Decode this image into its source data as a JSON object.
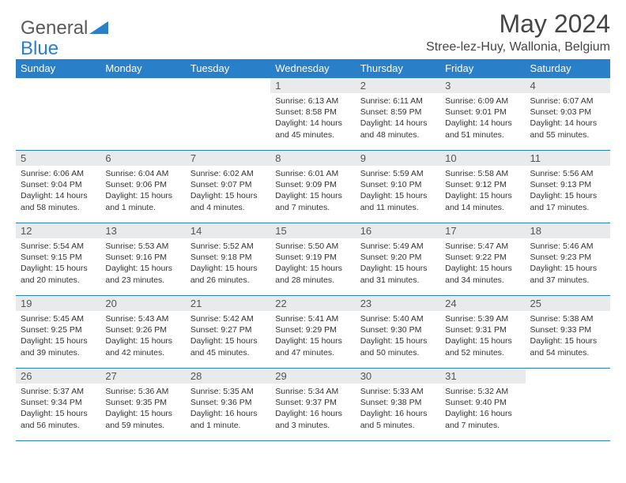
{
  "brand": {
    "part1": "General",
    "part2": "Blue"
  },
  "title": "May 2024",
  "location": "Stree-lez-Huy, Wallonia, Belgium",
  "colors": {
    "header_bg": "#2a7fc9",
    "header_text": "#ffffff",
    "daynum_bg": "#e9eaeb",
    "border": "#2a7fc9",
    "text": "#333333",
    "logo_gray": "#5a5a5a",
    "logo_blue": "#2a7fc9"
  },
  "weekdays": [
    "Sunday",
    "Monday",
    "Tuesday",
    "Wednesday",
    "Thursday",
    "Friday",
    "Saturday"
  ],
  "weeks": [
    [
      null,
      null,
      null,
      {
        "n": "1",
        "sr": "6:13 AM",
        "ss": "8:58 PM",
        "dl": "14 hours and 45 minutes."
      },
      {
        "n": "2",
        "sr": "6:11 AM",
        "ss": "8:59 PM",
        "dl": "14 hours and 48 minutes."
      },
      {
        "n": "3",
        "sr": "6:09 AM",
        "ss": "9:01 PM",
        "dl": "14 hours and 51 minutes."
      },
      {
        "n": "4",
        "sr": "6:07 AM",
        "ss": "9:03 PM",
        "dl": "14 hours and 55 minutes."
      }
    ],
    [
      {
        "n": "5",
        "sr": "6:06 AM",
        "ss": "9:04 PM",
        "dl": "14 hours and 58 minutes."
      },
      {
        "n": "6",
        "sr": "6:04 AM",
        "ss": "9:06 PM",
        "dl": "15 hours and 1 minute."
      },
      {
        "n": "7",
        "sr": "6:02 AM",
        "ss": "9:07 PM",
        "dl": "15 hours and 4 minutes."
      },
      {
        "n": "8",
        "sr": "6:01 AM",
        "ss": "9:09 PM",
        "dl": "15 hours and 7 minutes."
      },
      {
        "n": "9",
        "sr": "5:59 AM",
        "ss": "9:10 PM",
        "dl": "15 hours and 11 minutes."
      },
      {
        "n": "10",
        "sr": "5:58 AM",
        "ss": "9:12 PM",
        "dl": "15 hours and 14 minutes."
      },
      {
        "n": "11",
        "sr": "5:56 AM",
        "ss": "9:13 PM",
        "dl": "15 hours and 17 minutes."
      }
    ],
    [
      {
        "n": "12",
        "sr": "5:54 AM",
        "ss": "9:15 PM",
        "dl": "15 hours and 20 minutes."
      },
      {
        "n": "13",
        "sr": "5:53 AM",
        "ss": "9:16 PM",
        "dl": "15 hours and 23 minutes."
      },
      {
        "n": "14",
        "sr": "5:52 AM",
        "ss": "9:18 PM",
        "dl": "15 hours and 26 minutes."
      },
      {
        "n": "15",
        "sr": "5:50 AM",
        "ss": "9:19 PM",
        "dl": "15 hours and 28 minutes."
      },
      {
        "n": "16",
        "sr": "5:49 AM",
        "ss": "9:20 PM",
        "dl": "15 hours and 31 minutes."
      },
      {
        "n": "17",
        "sr": "5:47 AM",
        "ss": "9:22 PM",
        "dl": "15 hours and 34 minutes."
      },
      {
        "n": "18",
        "sr": "5:46 AM",
        "ss": "9:23 PM",
        "dl": "15 hours and 37 minutes."
      }
    ],
    [
      {
        "n": "19",
        "sr": "5:45 AM",
        "ss": "9:25 PM",
        "dl": "15 hours and 39 minutes."
      },
      {
        "n": "20",
        "sr": "5:43 AM",
        "ss": "9:26 PM",
        "dl": "15 hours and 42 minutes."
      },
      {
        "n": "21",
        "sr": "5:42 AM",
        "ss": "9:27 PM",
        "dl": "15 hours and 45 minutes."
      },
      {
        "n": "22",
        "sr": "5:41 AM",
        "ss": "9:29 PM",
        "dl": "15 hours and 47 minutes."
      },
      {
        "n": "23",
        "sr": "5:40 AM",
        "ss": "9:30 PM",
        "dl": "15 hours and 50 minutes."
      },
      {
        "n": "24",
        "sr": "5:39 AM",
        "ss": "9:31 PM",
        "dl": "15 hours and 52 minutes."
      },
      {
        "n": "25",
        "sr": "5:38 AM",
        "ss": "9:33 PM",
        "dl": "15 hours and 54 minutes."
      }
    ],
    [
      {
        "n": "26",
        "sr": "5:37 AM",
        "ss": "9:34 PM",
        "dl": "15 hours and 56 minutes."
      },
      {
        "n": "27",
        "sr": "5:36 AM",
        "ss": "9:35 PM",
        "dl": "15 hours and 59 minutes."
      },
      {
        "n": "28",
        "sr": "5:35 AM",
        "ss": "9:36 PM",
        "dl": "16 hours and 1 minute."
      },
      {
        "n": "29",
        "sr": "5:34 AM",
        "ss": "9:37 PM",
        "dl": "16 hours and 3 minutes."
      },
      {
        "n": "30",
        "sr": "5:33 AM",
        "ss": "9:38 PM",
        "dl": "16 hours and 5 minutes."
      },
      {
        "n": "31",
        "sr": "5:32 AM",
        "ss": "9:40 PM",
        "dl": "16 hours and 7 minutes."
      },
      null
    ]
  ]
}
